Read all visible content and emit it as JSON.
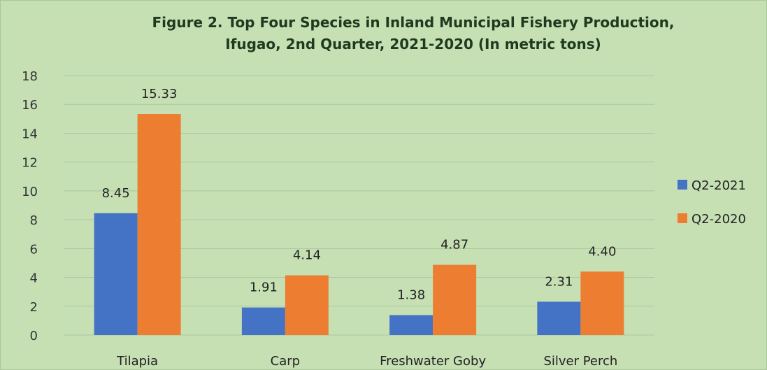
{
  "chart_data": {
    "type": "bar",
    "title_line1": "Figure 2. Top Four Species in Inland Municipal Fishery Production,",
    "title_line2": "Ifugao, 2nd Quarter, 2021-2020 (In metric tons)",
    "categories": [
      "Tilapia",
      "Carp",
      "Freshwater Goby",
      "Silver Perch"
    ],
    "series": [
      {
        "name": "Q2-2021",
        "values": [
          8.45,
          1.91,
          1.38,
          2.31
        ],
        "labels": [
          "8.45",
          "1.91",
          "1.38",
          "2.31"
        ],
        "color": "#4472c4"
      },
      {
        "name": "Q2-2020",
        "values": [
          15.33,
          4.14,
          4.87,
          4.4
        ],
        "labels": [
          "15.33",
          "4.14",
          "4.87",
          "4.40"
        ],
        "color": "#ed7d31"
      }
    ],
    "ylim": [
      0,
      18
    ],
    "yticks": [
      0,
      2,
      4,
      6,
      8,
      10,
      12,
      14,
      16,
      18
    ],
    "grid": true,
    "legend": "right",
    "background": "#c6e0b4",
    "gridline_color": "#a9c7a0"
  }
}
